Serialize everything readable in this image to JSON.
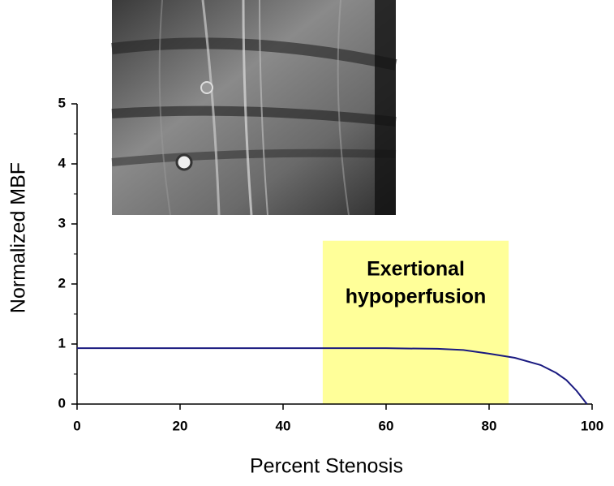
{
  "chart_data": {
    "type": "line",
    "x_label": "Percent Stenosis",
    "y_label": "Normalized MBF",
    "x": [
      0,
      40,
      60,
      70,
      75,
      80,
      85,
      90,
      93,
      95,
      97,
      99
    ],
    "series": [
      {
        "color": "#1a1a80",
        "values": [
          0.93,
          0.93,
          0.93,
          0.92,
          0.9,
          0.84,
          0.77,
          0.65,
          0.52,
          0.4,
          0.22,
          0.0
        ]
      }
    ],
    "xlim": [
      0,
      100
    ],
    "xticks": [
      0,
      20,
      40,
      60,
      80,
      100
    ],
    "ylim": [
      0,
      5
    ],
    "yticks": [
      0,
      1,
      2,
      3,
      4,
      5
    ],
    "yminorticks": [
      0.5,
      1.5,
      2.5,
      3.5,
      4.5
    ],
    "shaded_region": {
      "xlim": [
        47.7,
        83.8
      ],
      "ylim": [
        0,
        2.72
      ],
      "color": "#ffff99",
      "annotation": [
        "Exertional",
        "hypoperfusion"
      ]
    }
  }
}
